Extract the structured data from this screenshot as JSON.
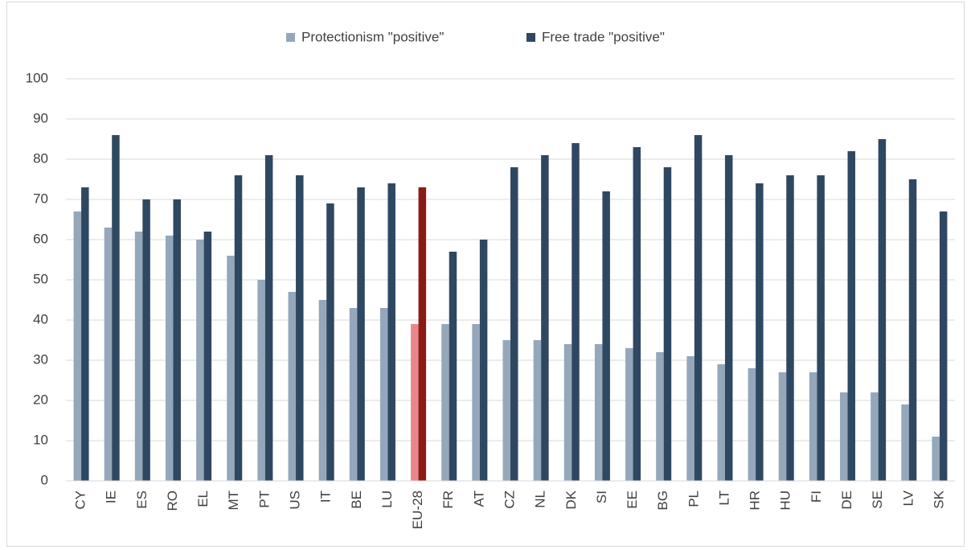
{
  "chart_data": {
    "type": "bar",
    "categories": [
      "CY",
      "IE",
      "ES",
      "RO",
      "EL",
      "MT",
      "PT",
      "US",
      "IT",
      "BE",
      "LU",
      "EU-28",
      "FR",
      "AT",
      "CZ",
      "NL",
      "DK",
      "SI",
      "EE",
      "BG",
      "PL",
      "LT",
      "HR",
      "HU",
      "FI",
      "DE",
      "SE",
      "LV",
      "SK"
    ],
    "series": [
      {
        "name": "Protectionism \"positive\"",
        "color": "#94a7bb",
        "colors": [
          "#94a7bb",
          "#94a7bb",
          "#94a7bb",
          "#94a7bb",
          "#94a7bb",
          "#94a7bb",
          "#94a7bb",
          "#94a7bb",
          "#94a7bb",
          "#94a7bb",
          "#94a7bb",
          "#e8878a",
          "#94a7bb",
          "#94a7bb",
          "#94a7bb",
          "#94a7bb",
          "#94a7bb",
          "#94a7bb",
          "#94a7bb",
          "#94a7bb",
          "#94a7bb",
          "#94a7bb",
          "#94a7bb",
          "#94a7bb",
          "#94a7bb",
          "#94a7bb",
          "#94a7bb",
          "#94a7bb",
          "#94a7bb"
        ],
        "values": [
          67,
          63,
          62,
          61,
          60,
          56,
          50,
          47,
          45,
          43,
          43,
          39,
          39,
          39,
          35,
          35,
          34,
          34,
          33,
          32,
          31,
          29,
          28,
          27,
          27,
          22,
          22,
          19,
          11
        ]
      },
      {
        "name": "Free trade \"positive\"",
        "color": "#2f4862",
        "colors": [
          "#2f4862",
          "#2f4862",
          "#2f4862",
          "#2f4862",
          "#2f4862",
          "#2f4862",
          "#2f4862",
          "#2f4862",
          "#2f4862",
          "#2f4862",
          "#2f4862",
          "#8b1a14",
          "#2f4862",
          "#2f4862",
          "#2f4862",
          "#2f4862",
          "#2f4862",
          "#2f4862",
          "#2f4862",
          "#2f4862",
          "#2f4862",
          "#2f4862",
          "#2f4862",
          "#2f4862",
          "#2f4862",
          "#2f4862",
          "#2f4862",
          "#2f4862",
          "#2f4862"
        ],
        "values": [
          73,
          86,
          70,
          70,
          62,
          76,
          81,
          76,
          69,
          73,
          74,
          73,
          57,
          60,
          78,
          81,
          84,
          72,
          83,
          78,
          86,
          81,
          74,
          76,
          76,
          82,
          85,
          75,
          67
        ]
      }
    ],
    "ylim": [
      0,
      100
    ],
    "yticks": [
      0,
      10,
      20,
      30,
      40,
      50,
      60,
      70,
      80,
      90,
      100
    ],
    "grid": true,
    "legend": "top"
  }
}
